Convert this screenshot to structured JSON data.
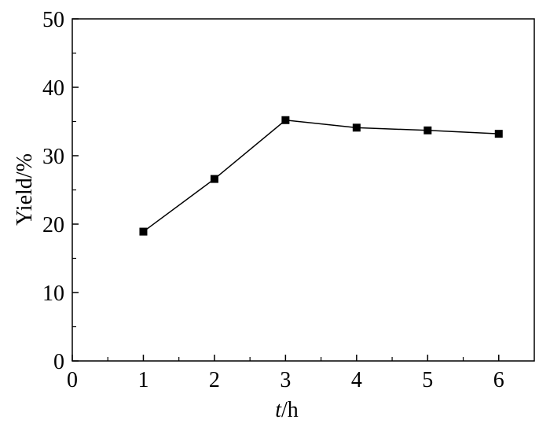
{
  "chart_data": {
    "type": "line",
    "xlabel_italic": "t",
    "xlabel_unit": "/h",
    "ylabel": "Yield/%",
    "xlim": [
      0,
      6.5
    ],
    "ylim": [
      0,
      50
    ],
    "x_ticks": [
      0,
      1,
      2,
      3,
      4,
      5,
      6
    ],
    "y_ticks": [
      0,
      10,
      20,
      30,
      40,
      50
    ],
    "grid": false,
    "series": [
      {
        "x": [
          1,
          2,
          3,
          4,
          5,
          6
        ],
        "y": [
          18.9,
          26.6,
          35.2,
          34.1,
          33.7,
          33.2
        ],
        "marker": "square",
        "color": "#000000"
      }
    ]
  }
}
